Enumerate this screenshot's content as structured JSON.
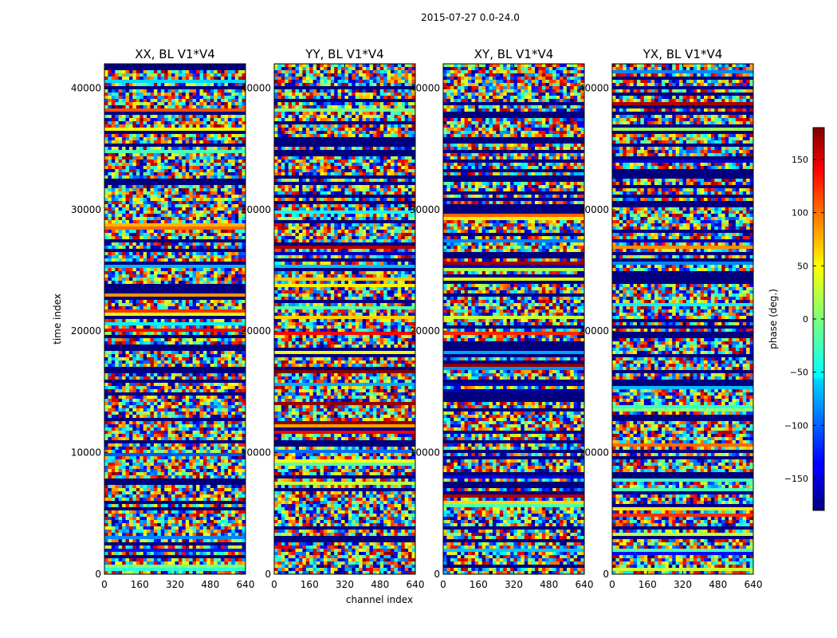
{
  "chart_data": {
    "type": "heatmap",
    "suptitle": "2015-07-27 0.0-24.0",
    "xlabel": "channel index",
    "ylabel": "time index",
    "xlim": [
      0,
      640
    ],
    "ylim": [
      0,
      42000
    ],
    "xticks": [
      0,
      160,
      320,
      480,
      640
    ],
    "yticks": [
      0,
      10000,
      20000,
      30000,
      40000
    ],
    "colorbar": {
      "label": "phase (deg.)",
      "range": [
        -180,
        180
      ],
      "ticks": [
        -150,
        -100,
        -50,
        0,
        50,
        100,
        150
      ],
      "tick_labels": [
        "−150",
        "−100",
        "−50",
        "0",
        "50",
        "100",
        "150"
      ],
      "colormap": "jet"
    },
    "panels": [
      {
        "title": "XX, BL V1*V4"
      },
      {
        "title": "YY, BL V1*V4"
      },
      {
        "title": "XY, BL V1*V4"
      },
      {
        "title": "YX, BL V1*V4"
      }
    ]
  }
}
